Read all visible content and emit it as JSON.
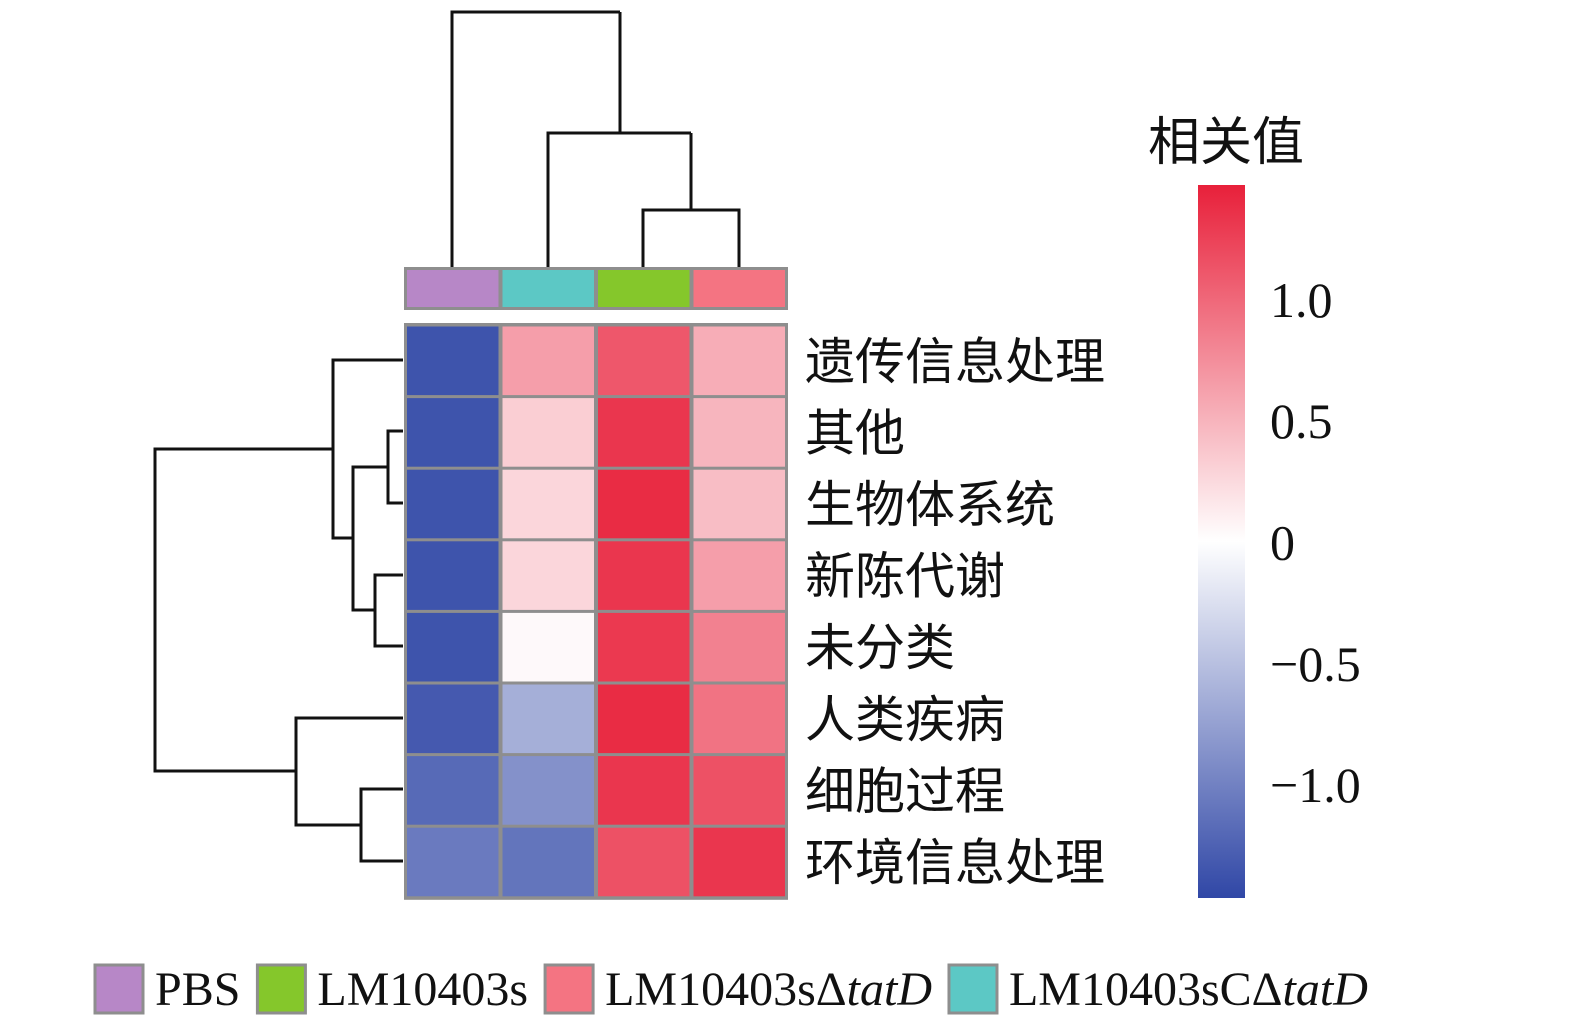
{
  "chart_data": {
    "type": "heatmap",
    "title": "",
    "columns": [
      "PBS",
      "LM10403sCΔtatD",
      "LM10403s",
      "LM10403sΔtatD"
    ],
    "column_group_colors": [
      "#b787c7",
      "#5cc8c5",
      "#85c72b",
      "#f47482"
    ],
    "rows": [
      "遗传信息处理",
      "其他",
      "生物体系统",
      "新陈代谢",
      "未分类",
      "人类疾病",
      "细胞过程",
      "环境信息处理"
    ],
    "values": [
      [
        -1.35,
        0.55,
        1.05,
        0.45
      ],
      [
        -1.35,
        0.25,
        1.3,
        0.4
      ],
      [
        -1.35,
        0.2,
        1.38,
        0.35
      ],
      [
        -1.35,
        0.2,
        1.3,
        0.55
      ],
      [
        -1.35,
        0.02,
        1.28,
        0.75
      ],
      [
        -1.3,
        -0.55,
        1.38,
        0.85
      ],
      [
        -1.15,
        -0.8,
        1.3,
        1.1
      ],
      [
        -1.0,
        -1.05,
        1.1,
        1.3
      ]
    ],
    "colorbar": {
      "title": "相关值",
      "range": [
        -1.47,
        1.47
      ],
      "ticks": [
        1.0,
        0.5,
        0,
        -0.5,
        -1.0
      ],
      "tick_labels": [
        "1.0",
        "0.5",
        "0",
        "−0.5",
        "−1.0"
      ],
      "low_color": "#3047a6",
      "mid_color": "#ffffff",
      "high_color": "#e8203a"
    },
    "legend": {
      "placement": "bottom",
      "items": [
        {
          "label": "PBS",
          "suffix": "",
          "color": "#b787c7"
        },
        {
          "label": "LM10403s",
          "suffix": "",
          "color": "#85c72b"
        },
        {
          "label": "LM10403sΔ",
          "suffix": "tatD",
          "color": "#f47482"
        },
        {
          "label": "LM10403sCΔ",
          "suffix": "tatD",
          "color": "#5cc8c5"
        }
      ]
    }
  }
}
